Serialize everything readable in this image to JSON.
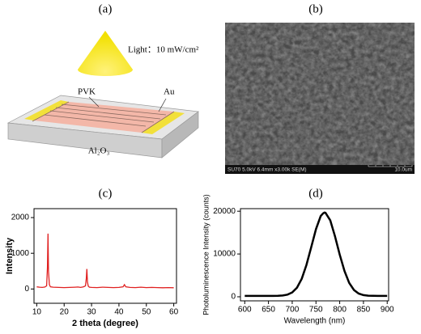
{
  "panels": {
    "a": {
      "label": "(a)",
      "light": "Light：10 mW/cm²",
      "pvk": "PVK",
      "au": "Au",
      "substrate": "Al₂O₃"
    },
    "b": {
      "label": "(b)",
      "info": "SU70 5.0kV 6.4mm x3.00k SE(M)",
      "scale": "10.0um"
    }
  },
  "chart_data": [
    {
      "type": "line",
      "panel_label": "(c)",
      "xlabel": "2 theta (degree)",
      "ylabel": "Intensity",
      "color": "#e02020",
      "x": [
        10,
        11,
        12,
        13,
        13.6,
        13.9,
        14.1,
        14.3,
        14.6,
        15,
        16,
        18,
        20,
        22,
        24,
        25,
        26,
        27,
        27.8,
        28.1,
        28.3,
        28.5,
        28.8,
        29.2,
        30,
        32,
        34,
        36,
        38,
        40,
        41.5,
        42,
        42.5,
        44,
        46,
        48,
        50,
        52,
        54,
        56,
        58,
        60
      ],
      "values": [
        60,
        50,
        45,
        55,
        90,
        600,
        1550,
        500,
        120,
        60,
        50,
        45,
        40,
        45,
        50,
        55,
        45,
        60,
        90,
        300,
        560,
        200,
        80,
        50,
        45,
        40,
        50,
        45,
        40,
        45,
        60,
        120,
        60,
        45,
        40,
        50,
        40,
        45,
        40,
        35,
        40,
        35
      ],
      "xlim": [
        9,
        61
      ],
      "ylim": [
        -400,
        2250
      ],
      "xticks": [
        10,
        20,
        30,
        40,
        50,
        60
      ],
      "yticks": [
        0,
        1000,
        2000
      ]
    },
    {
      "type": "line",
      "panel_label": "(d)",
      "xlabel": "Wavelength (nm)",
      "ylabel": "Photoluminescence Intensity (counts)",
      "color": "#000000",
      "x": [
        600,
        610,
        620,
        630,
        640,
        650,
        660,
        670,
        680,
        690,
        700,
        710,
        720,
        730,
        740,
        750,
        760,
        765,
        768,
        770,
        780,
        790,
        800,
        810,
        820,
        830,
        840,
        850,
        860,
        870,
        880,
        890,
        900
      ],
      "values": [
        200,
        200,
        200,
        200,
        200,
        200,
        200,
        230,
        300,
        500,
        1020,
        2140,
        4220,
        7440,
        11590,
        15820,
        18860,
        19500,
        19700,
        19640,
        17870,
        14190,
        9860,
        6020,
        3250,
        1590,
        760,
        390,
        260,
        220,
        200,
        200,
        200
      ],
      "xlim": [
        591,
        903
      ],
      "ylim": [
        -950,
        20600
      ],
      "xticks": [
        600,
        650,
        700,
        750,
        800,
        850,
        900
      ],
      "yticks": [
        0,
        10000,
        20000
      ]
    }
  ]
}
